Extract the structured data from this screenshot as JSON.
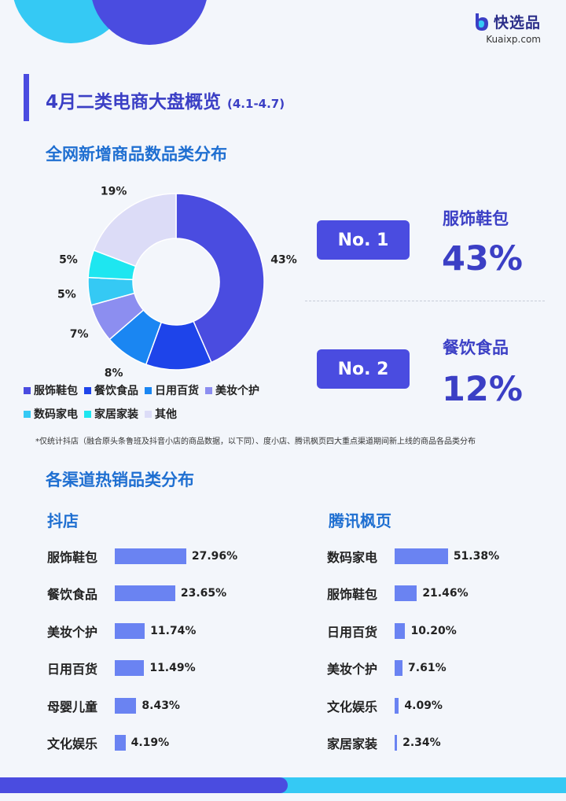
{
  "brand": {
    "name": "快选品",
    "url": "Kuaixp.com",
    "colors": {
      "primary": "#4a4ce0",
      "accent": "#35c9f4",
      "heading": "#1f6fd1",
      "bar": "#6a83f2"
    }
  },
  "header": {
    "title": "4月二类电商大盘概览",
    "date_range": "(4.1-4.7)"
  },
  "section1": {
    "title": "全网新增商品数品类分布",
    "top": [
      {
        "rank": "No. 1",
        "category": "服饰鞋包",
        "percent": "43%"
      },
      {
        "rank": "No. 2",
        "category": "餐饮食品",
        "percent": "12%"
      }
    ],
    "footnote": "*仅统计抖店（融合原头条鲁班及抖音小店的商品数据，以下同）、度小店、腾讯枫页四大重点渠道期间新上线的商品各品类分布"
  },
  "section2": {
    "title": "各渠道热销品类分布"
  },
  "chart_data": [
    {
      "type": "pie",
      "categories": [
        "服饰鞋包",
        "餐饮食品",
        "日用百货",
        "美妆个护",
        "数码家电",
        "家居家装",
        "其他"
      ],
      "values": [
        43,
        12,
        8,
        7,
        5,
        5,
        19
      ],
      "labels": [
        "43%",
        "12%",
        "8%",
        "7%",
        "5%",
        "5%",
        "19%"
      ],
      "colors": [
        "#4a4ce0",
        "#1e44ea",
        "#1a86f2",
        "#8c8ef0",
        "#35c9f4",
        "#1ee6f0",
        "#dcdcf7"
      ],
      "legend": "bottom"
    },
    {
      "type": "bar",
      "orientation": "horizontal",
      "title": "抖店",
      "categories": [
        "服饰鞋包",
        "餐饮食品",
        "美妆个护",
        "日用百货",
        "母婴儿童",
        "文化娱乐"
      ],
      "values": [
        27.96,
        23.65,
        11.74,
        11.49,
        8.43,
        4.19
      ],
      "labels": [
        "27.96%",
        "23.65%",
        "11.74%",
        "11.49%",
        "8.43%",
        "4.19%"
      ]
    },
    {
      "type": "bar",
      "orientation": "horizontal",
      "title": "腾讯枫页",
      "categories": [
        "数码家电",
        "服饰鞋包",
        "日用百货",
        "美妆个护",
        "文化娱乐",
        "家居家装"
      ],
      "values": [
        51.38,
        21.46,
        10.2,
        7.61,
        4.09,
        2.34
      ],
      "labels": [
        "51.38%",
        "21.46%",
        "10.20%",
        "7.61%",
        "4.09%",
        "2.34%"
      ]
    }
  ]
}
